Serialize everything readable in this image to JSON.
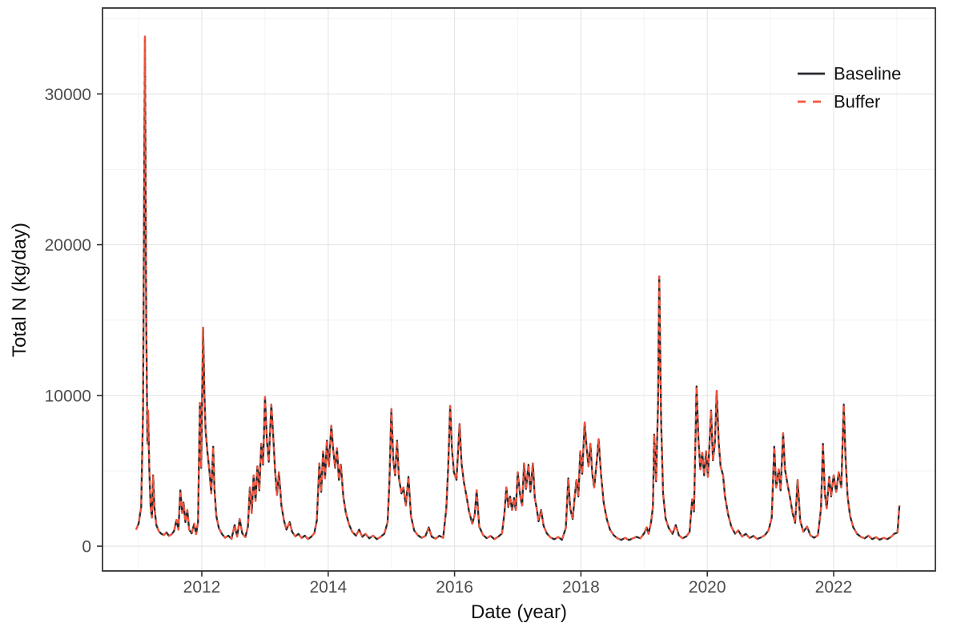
{
  "figure": {
    "style": {
      "background": "#ffffff",
      "panel_border_color": "#333333",
      "grid_major_color": "#e6e6e6",
      "grid_minor_color": "#f2f2f2",
      "tick_color": "#333333",
      "tick_label_color": "#4d4d4d",
      "axis_title_color": "#111111",
      "legend_text_color": "#111111"
    }
  },
  "chart_data": {
    "type": "line",
    "title": "",
    "xlabel": "Date (year)",
    "ylabel": "Total N (kg/day)",
    "x_ticks": [
      2012,
      2014,
      2016,
      2018,
      2020,
      2022
    ],
    "x_minor_ticks": [
      2011,
      2013,
      2015,
      2017,
      2019,
      2021,
      2023
    ],
    "y_ticks": [
      0,
      10000,
      20000,
      30000
    ],
    "y_minor_ticks": [
      5000,
      15000,
      25000,
      35000
    ],
    "xlim": [
      2010.43,
      2023.6
    ],
    "ylim": [
      -1650,
      35700
    ],
    "grid": "major+minor",
    "legend_position": "inside top-right",
    "legend": {
      "items": [
        {
          "label": "Baseline",
          "color": "#26292c",
          "dash": "solid"
        },
        {
          "label": "Buffer",
          "color": "#f4543c",
          "dash": "dashed"
        }
      ]
    },
    "note": "Baseline and Buffer series overlap almost exactly; Buffer is drawn as a red dashed line on top of the solid black Baseline line. Values below are shared by both series.",
    "x": [
      2010.96,
      2011.0,
      2011.04,
      2011.07,
      2011.1,
      2011.12,
      2011.14,
      2011.15,
      2011.17,
      2011.19,
      2011.21,
      2011.23,
      2011.25,
      2011.28,
      2011.32,
      2011.36,
      2011.4,
      2011.44,
      2011.48,
      2011.52,
      2011.56,
      2011.6,
      2011.63,
      2011.66,
      2011.69,
      2011.71,
      2011.74,
      2011.77,
      2011.8,
      2011.84,
      2011.88,
      2011.91,
      2011.94,
      2011.97,
      2011.99,
      2012.02,
      2012.04,
      2012.06,
      2012.09,
      2012.12,
      2012.15,
      2012.18,
      2012.2,
      2012.23,
      2012.27,
      2012.32,
      2012.37,
      2012.42,
      2012.47,
      2012.52,
      2012.56,
      2012.6,
      2012.64,
      2012.69,
      2012.73,
      2012.76,
      2012.79,
      2012.82,
      2012.85,
      2012.88,
      2012.91,
      2012.94,
      2012.97,
      2013.0,
      2013.03,
      2013.06,
      2013.1,
      2013.13,
      2013.16,
      2013.19,
      2013.22,
      2013.26,
      2013.3,
      2013.34,
      2013.39,
      2013.43,
      2013.48,
      2013.53,
      2013.58,
      2013.63,
      2013.68,
      2013.73,
      2013.78,
      2013.82,
      2013.86,
      2013.89,
      2013.92,
      2013.95,
      2013.98,
      2014.01,
      2014.05,
      2014.08,
      2014.11,
      2014.14,
      2014.17,
      2014.2,
      2014.24,
      2014.28,
      2014.33,
      2014.38,
      2014.44,
      2014.49,
      2014.54,
      2014.59,
      2014.65,
      2014.71,
      2014.77,
      2014.83,
      2014.89,
      2014.94,
      2014.97,
      2015.0,
      2015.03,
      2015.06,
      2015.09,
      2015.12,
      2015.16,
      2015.19,
      2015.23,
      2015.27,
      2015.31,
      2015.36,
      2015.42,
      2015.48,
      2015.54,
      2015.59,
      2015.64,
      2015.7,
      2015.76,
      2015.82,
      2015.87,
      2015.9,
      2015.93,
      2015.96,
      2015.99,
      2016.03,
      2016.08,
      2016.11,
      2016.15,
      2016.19,
      2016.23,
      2016.28,
      2016.32,
      2016.35,
      2016.39,
      2016.45,
      2016.51,
      2016.57,
      2016.63,
      2016.69,
      2016.75,
      2016.79,
      2016.82,
      2016.85,
      2016.88,
      2016.91,
      2016.94,
      2016.97,
      2017.0,
      2017.04,
      2017.07,
      2017.1,
      2017.13,
      2017.17,
      2017.2,
      2017.24,
      2017.27,
      2017.3,
      2017.33,
      2017.37,
      2017.41,
      2017.46,
      2017.52,
      2017.58,
      2017.64,
      2017.7,
      2017.76,
      2017.8,
      2017.83,
      2017.87,
      2017.9,
      2017.93,
      2017.96,
      2017.99,
      2018.02,
      2018.06,
      2018.09,
      2018.12,
      2018.15,
      2018.18,
      2018.21,
      2018.25,
      2018.28,
      2018.32,
      2018.36,
      2018.41,
      2018.46,
      2018.52,
      2018.58,
      2018.64,
      2018.7,
      2018.76,
      2018.82,
      2018.88,
      2018.94,
      2019.0,
      2019.04,
      2019.07,
      2019.11,
      2019.14,
      2019.16,
      2019.19,
      2019.22,
      2019.24,
      2019.27,
      2019.3,
      2019.34,
      2019.39,
      2019.45,
      2019.5,
      2019.55,
      2019.61,
      2019.67,
      2019.72,
      2019.76,
      2019.79,
      2019.83,
      2019.86,
      2019.89,
      2019.92,
      2019.95,
      2019.98,
      2020.01,
      2020.06,
      2020.09,
      2020.12,
      2020.15,
      2020.18,
      2020.21,
      2020.25,
      2020.28,
      2020.33,
      2020.38,
      2020.44,
      2020.49,
      2020.55,
      2020.61,
      2020.67,
      2020.73,
      2020.79,
      2020.85,
      2020.91,
      2020.97,
      2021.02,
      2021.06,
      2021.09,
      2021.13,
      2021.16,
      2021.2,
      2021.23,
      2021.27,
      2021.31,
      2021.35,
      2021.39,
      2021.43,
      2021.47,
      2021.52,
      2021.58,
      2021.63,
      2021.69,
      2021.75,
      2021.8,
      2021.83,
      2021.86,
      2021.89,
      2021.93,
      2021.96,
      2022.0,
      2022.04,
      2022.08,
      2022.12,
      2022.16,
      2022.19,
      2022.22,
      2022.26,
      2022.31,
      2022.37,
      2022.43,
      2022.49,
      2022.55,
      2022.61,
      2022.67,
      2022.73,
      2022.79,
      2022.85,
      2022.91,
      2022.96,
      2023.01,
      2023.04
    ],
    "values": [
      1100,
      1500,
      2600,
      9000,
      33800,
      15000,
      6800,
      9000,
      5000,
      2600,
      1900,
      4700,
      2600,
      1400,
      1000,
      820,
      740,
      920,
      680,
      780,
      1000,
      1750,
      1100,
      3700,
      2200,
      2900,
      1600,
      2400,
      1100,
      850,
      1500,
      800,
      1600,
      9500,
      5200,
      14500,
      10200,
      7700,
      6200,
      5000,
      3500,
      6600,
      3800,
      2000,
      1200,
      800,
      560,
      700,
      480,
      1400,
      640,
      1800,
      850,
      600,
      1300,
      3900,
      2200,
      4700,
      3000,
      5300,
      3700,
      6800,
      5400,
      9900,
      7000,
      5600,
      9400,
      7300,
      5000,
      3400,
      4900,
      2700,
      1700,
      1100,
      1600,
      950,
      650,
      820,
      540,
      700,
      470,
      620,
      850,
      1700,
      5500,
      3600,
      6300,
      4500,
      7000,
      5300,
      8000,
      6400,
      5200,
      6500,
      4400,
      5400,
      3300,
      2200,
      1450,
      950,
      700,
      1100,
      620,
      820,
      520,
      700,
      470,
      620,
      830,
      1600,
      4300,
      9100,
      5700,
      4700,
      7000,
      4500,
      3500,
      3900,
      2700,
      4600,
      2000,
      1050,
      720,
      560,
      680,
      1250,
      620,
      500,
      690,
      560,
      2500,
      5300,
      9300,
      6400,
      4900,
      4400,
      8100,
      5500,
      4200,
      3300,
      2300,
      1500,
      2100,
      3700,
      1300,
      750,
      530,
      680,
      470,
      620,
      840,
      2200,
      3900,
      2600,
      3300,
      2400,
      3200,
      2400,
      4900,
      3300,
      2700,
      5500,
      3800,
      5400,
      3600,
      5500,
      3200,
      2500,
      1650,
      2400,
      1350,
      850,
      580,
      460,
      610,
      420,
      1200,
      4500,
      2500,
      1800,
      3200,
      4400,
      3300,
      6300,
      4800,
      8200,
      6500,
      5300,
      6800,
      4800,
      3900,
      5600,
      7100,
      4700,
      2900,
      1800,
      1100,
      720,
      520,
      420,
      560,
      410,
      520,
      620,
      520,
      850,
      1250,
      820,
      1600,
      2600,
      7400,
      4300,
      9500,
      17900,
      8200,
      3500,
      1850,
      1200,
      820,
      1400,
      720,
      520,
      660,
      950,
      3100,
      2300,
      10600,
      7000,
      5100,
      6200,
      4700,
      6300,
      4600,
      9000,
      5700,
      6900,
      10300,
      6900,
      5300,
      4700,
      3300,
      2100,
      1300,
      830,
      1050,
      640,
      820,
      540,
      680,
      480,
      580,
      730,
      1050,
      1900,
      6600,
      3900,
      5100,
      3700,
      7500,
      5100,
      4100,
      3200,
      2200,
      1550,
      4400,
      1700,
      950,
      1300,
      720,
      560,
      720,
      2500,
      6800,
      3500,
      2500,
      4600,
      3300,
      4700,
      3600,
      4900,
      3900,
      9400,
      5700,
      3300,
      2000,
      1250,
      820,
      620,
      520,
      700,
      470,
      600,
      430,
      560,
      470,
      620,
      830,
      900,
      2700
    ],
    "series": [
      {
        "name": "Baseline",
        "color": "#26292c",
        "dash": "solid",
        "values_ref": "values"
      },
      {
        "name": "Buffer",
        "color": "#f4543c",
        "dash": "dashed",
        "values_ref": "values"
      }
    ]
  }
}
